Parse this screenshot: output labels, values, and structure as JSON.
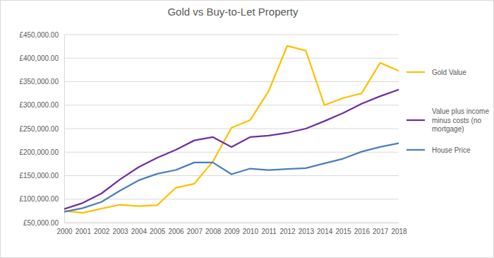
{
  "chart_data": {
    "type": "line",
    "title": "Gold vs Buy-to-Let Property",
    "categories": [
      "2000",
      "2001",
      "2002",
      "2003",
      "2004",
      "2005",
      "2006",
      "2007",
      "2008",
      "2009",
      "2010",
      "2011",
      "2012",
      "2013",
      "2014",
      "2015",
      "2016",
      "2017",
      "2018"
    ],
    "series": [
      {
        "name": "Gold Value",
        "color": "#ffc000",
        "values": [
          75000,
          71000,
          80000,
          88000,
          85000,
          87000,
          124000,
          133000,
          180000,
          252000,
          268000,
          330000,
          426000,
          416000,
          300000,
          315000,
          325000,
          390000,
          373000
        ]
      },
      {
        "name": "Value plus income minus costs (no mortgage)",
        "color": "#7030a0",
        "values": [
          79000,
          92000,
          112000,
          142000,
          168000,
          188000,
          205000,
          225000,
          232000,
          211000,
          232000,
          235000,
          241000,
          250000,
          266000,
          283000,
          303000,
          319000,
          333000
        ]
      },
      {
        "name": "House Price",
        "color": "#4a7ebb",
        "values": [
          73000,
          81000,
          94000,
          118000,
          140000,
          154000,
          162000,
          178000,
          178000,
          153000,
          165000,
          162000,
          164000,
          166000,
          176000,
          186000,
          201000,
          211000,
          219000
        ]
      }
    ],
    "ylim": [
      50000,
      450000
    ],
    "yticks": [
      {
        "value": 50000,
        "label": "£50,000.00"
      },
      {
        "value": 100000,
        "label": "£100,000.00"
      },
      {
        "value": 150000,
        "label": "£150,000.00"
      },
      {
        "value": 200000,
        "label": "£200,000.00"
      },
      {
        "value": 250000,
        "label": "£250,000.00"
      },
      {
        "value": 300000,
        "label": "£300,000.00"
      },
      {
        "value": 350000,
        "label": "£350,000.00"
      },
      {
        "value": 400000,
        "label": "£400,000.00"
      },
      {
        "value": 450000,
        "label": "£450,000.00"
      }
    ],
    "grid": true,
    "legend": "right"
  }
}
